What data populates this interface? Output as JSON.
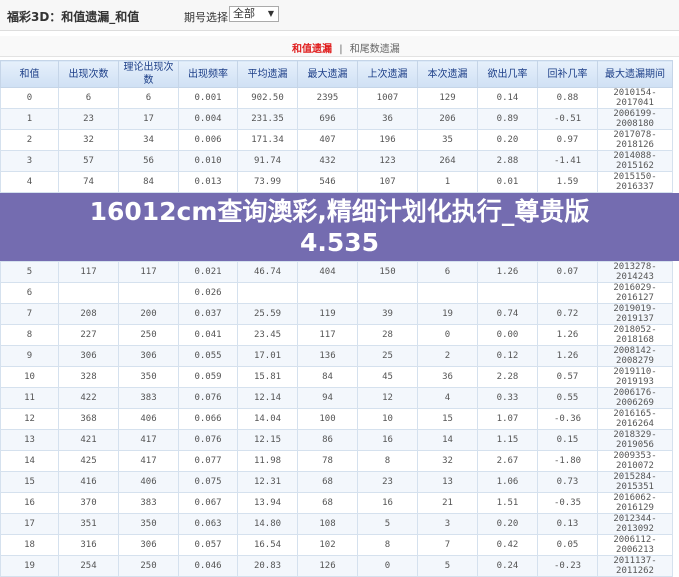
{
  "header": {
    "title": "福彩3D：和值遗漏_和值",
    "period_label": "期号选择：",
    "period_value": "全部"
  },
  "tabs": [
    {
      "label": "和值遗漏",
      "active": true
    },
    {
      "label": "和尾数遗漏",
      "active": false
    }
  ],
  "tab_separator": "|",
  "table": {
    "columns": [
      "和值",
      "出现次数",
      "理论出现次数",
      "出现频率",
      "平均遗漏",
      "最大遗漏",
      "上次遗漏",
      "本次遗漏",
      "欲出几率",
      "回补几率",
      "最大遗漏期间"
    ],
    "rows": [
      [
        "0",
        "6",
        "6",
        "0.001",
        "902.50",
        "2395",
        "1007",
        "129",
        "0.14",
        "0.88",
        "2010154-2017041"
      ],
      [
        "1",
        "23",
        "17",
        "0.004",
        "231.35",
        "696",
        "36",
        "206",
        "0.89",
        "-0.51",
        "2006199-2008180"
      ],
      [
        "2",
        "32",
        "34",
        "0.006",
        "171.34",
        "407",
        "196",
        "35",
        "0.20",
        "0.97",
        "2017078-2018126"
      ],
      [
        "3",
        "57",
        "56",
        "0.010",
        "91.74",
        "432",
        "123",
        "264",
        "2.88",
        "-1.41",
        "2014088-2015162"
      ],
      [
        "4",
        "74",
        "84",
        "0.013",
        "73.99",
        "546",
        "107",
        "1",
        "0.01",
        "1.59",
        "2015150-2016337"
      ],
      [
        "5",
        "117",
        "117",
        "0.021",
        "46.74",
        "404",
        "150",
        "6",
        "1.26",
        "0.07",
        "2013278-2014243"
      ],
      [
        "6",
        "",
        "",
        "0.026",
        "",
        "",
        "",
        "",
        "",
        "",
        "2016029-2016127"
      ],
      [
        "7",
        "208",
        "200",
        "0.037",
        "25.59",
        "119",
        "39",
        "19",
        "0.74",
        "0.72",
        "2019019-2019137"
      ],
      [
        "8",
        "227",
        "250",
        "0.041",
        "23.45",
        "117",
        "28",
        "0",
        "0.00",
        "1.26",
        "2018052-2018168"
      ],
      [
        "9",
        "306",
        "306",
        "0.055",
        "17.01",
        "136",
        "25",
        "2",
        "0.12",
        "1.26",
        "2008142-2008279"
      ],
      [
        "10",
        "328",
        "350",
        "0.059",
        "15.81",
        "84",
        "45",
        "36",
        "2.28",
        "0.57",
        "2019110-2019193"
      ],
      [
        "11",
        "422",
        "383",
        "0.076",
        "12.14",
        "94",
        "12",
        "4",
        "0.33",
        "0.55",
        "2006176-2006269"
      ],
      [
        "12",
        "368",
        "406",
        "0.066",
        "14.04",
        "100",
        "10",
        "15",
        "1.07",
        "-0.36",
        "2016165-2016264"
      ],
      [
        "13",
        "421",
        "417",
        "0.076",
        "12.15",
        "86",
        "16",
        "14",
        "1.15",
        "0.15",
        "2018329-2019056"
      ],
      [
        "14",
        "425",
        "417",
        "0.077",
        "11.98",
        "78",
        "8",
        "32",
        "2.67",
        "-1.80",
        "2009353-2010072"
      ],
      [
        "15",
        "416",
        "406",
        "0.075",
        "12.31",
        "68",
        "23",
        "13",
        "1.06",
        "0.73",
        "2015284-2015351"
      ],
      [
        "16",
        "370",
        "383",
        "0.067",
        "13.94",
        "68",
        "16",
        "21",
        "1.51",
        "-0.35",
        "2016062-2016129"
      ],
      [
        "17",
        "351",
        "350",
        "0.063",
        "14.80",
        "108",
        "5",
        "3",
        "0.20",
        "0.13",
        "2012344-2013092"
      ],
      [
        "18",
        "316",
        "306",
        "0.057",
        "16.54",
        "102",
        "8",
        "7",
        "0.42",
        "0.05",
        "2006112-2006213"
      ],
      [
        "19",
        "254",
        "250",
        "0.046",
        "20.83",
        "126",
        "0",
        "5",
        "0.24",
        "-0.23",
        "2011137-2011262"
      ]
    ]
  },
  "overlay": {
    "line1": "16012cm查询澳彩,精细计划化执行_尊贵版",
    "line2": "4.535"
  }
}
